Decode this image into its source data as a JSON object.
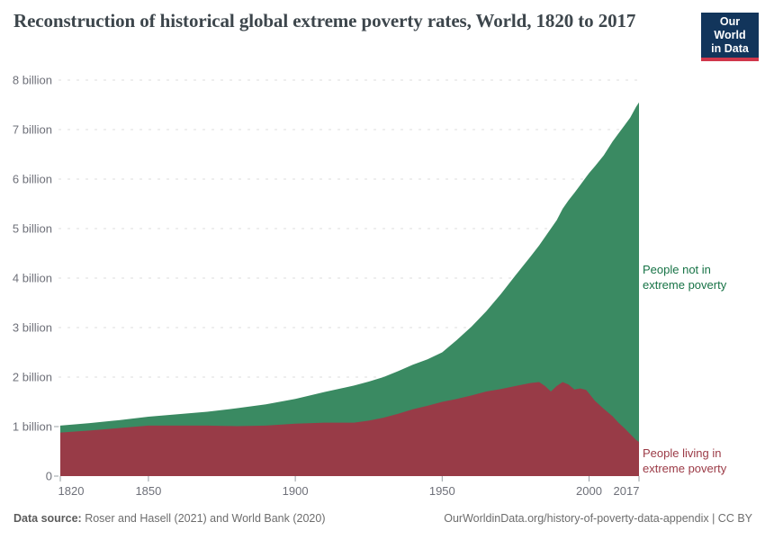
{
  "header": {
    "title": "Reconstruction of historical global extreme poverty rates, World, 1820 to 2017",
    "logo": {
      "line1": "Our World",
      "line2": "in Data",
      "bg_color": "#12355b",
      "bar_color": "#d0374b"
    }
  },
  "chart_data": {
    "type": "area",
    "stacked": true,
    "title": "Reconstruction of historical global extreme poverty rates, World, 1820 to 2017",
    "unit": "billion people",
    "xlim": [
      1820,
      2017
    ],
    "ylim": [
      0,
      8
    ],
    "grid": "horizontal dashed",
    "grid_color": "#dcdcdc",
    "axis_text_color": "#6e7079",
    "tick_color": "#9aa0a6",
    "xticks": [
      1820,
      1850,
      1900,
      1950,
      2000,
      2017
    ],
    "yticks": [
      {
        "v": 0,
        "label": "0"
      },
      {
        "v": 1,
        "label": "1 billion"
      },
      {
        "v": 2,
        "label": "2 billion"
      },
      {
        "v": 3,
        "label": "3 billion"
      },
      {
        "v": 4,
        "label": "4 billion"
      },
      {
        "v": 5,
        "label": "5 billion"
      },
      {
        "v": 6,
        "label": "6 billion"
      },
      {
        "v": 7,
        "label": "7 billion"
      },
      {
        "v": 8,
        "label": "8 billion"
      }
    ],
    "x": [
      1820,
      1830,
      1840,
      1850,
      1860,
      1870,
      1880,
      1890,
      1900,
      1910,
      1920,
      1925,
      1930,
      1935,
      1940,
      1945,
      1950,
      1955,
      1960,
      1965,
      1970,
      1975,
      1980,
      1983,
      1985,
      1987,
      1989,
      1991,
      1993,
      1995,
      1997,
      1999,
      2000,
      2002,
      2005,
      2008,
      2010,
      2012,
      2014,
      2016,
      2017
    ],
    "series": [
      {
        "name": "People living in extreme poverty",
        "color": "#983b47",
        "values": [
          0.88,
          0.92,
          0.97,
          1.02,
          1.02,
          1.02,
          1.01,
          1.02,
          1.06,
          1.08,
          1.08,
          1.12,
          1.18,
          1.26,
          1.35,
          1.42,
          1.5,
          1.56,
          1.63,
          1.71,
          1.76,
          1.82,
          1.88,
          1.9,
          1.82,
          1.71,
          1.82,
          1.9,
          1.85,
          1.75,
          1.77,
          1.74,
          1.67,
          1.52,
          1.36,
          1.21,
          1.08,
          0.97,
          0.85,
          0.73,
          0.69
        ]
      },
      {
        "name": "People not in extreme poverty",
        "color": "#3a8a62",
        "values": [
          0.14,
          0.15,
          0.16,
          0.18,
          0.23,
          0.28,
          0.36,
          0.43,
          0.5,
          0.62,
          0.75,
          0.79,
          0.82,
          0.86,
          0.9,
          0.94,
          1.0,
          1.19,
          1.39,
          1.62,
          1.92,
          2.24,
          2.55,
          2.76,
          3.01,
          3.29,
          3.35,
          3.5,
          3.72,
          3.97,
          4.11,
          4.3,
          4.45,
          4.74,
          5.12,
          5.55,
          5.84,
          6.11,
          6.39,
          6.73,
          6.86
        ]
      }
    ],
    "legend_position": "right-edge labels"
  },
  "annotations": {
    "not_poverty_line1": "People not in",
    "not_poverty_line2": "extreme poverty",
    "not_poverty_color": "#17734e",
    "poverty_line1": "People living in",
    "poverty_line2": "extreme poverty",
    "poverty_color": "#9b3a46"
  },
  "footer": {
    "source_label": "Data source:",
    "source_text": " Roser and Hasell (2021) and World Bank (2020)",
    "link_text": "OurWorldinData.org/history-of-poverty-data-appendix | CC BY"
  }
}
